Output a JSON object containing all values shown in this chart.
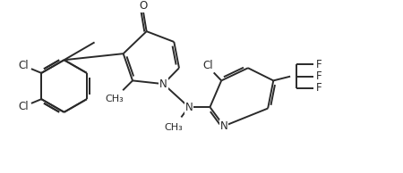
{
  "bg_color": "#ffffff",
  "line_color": "#2a2a2a",
  "text_color": "#2a2a2a",
  "line_width": 1.4,
  "font_size": 8.5,
  "figsize": [
    4.5,
    1.94
  ],
  "dpi": 100,
  "xlim": [
    0,
    9.5
  ],
  "ylim": [
    0,
    4.0
  ]
}
